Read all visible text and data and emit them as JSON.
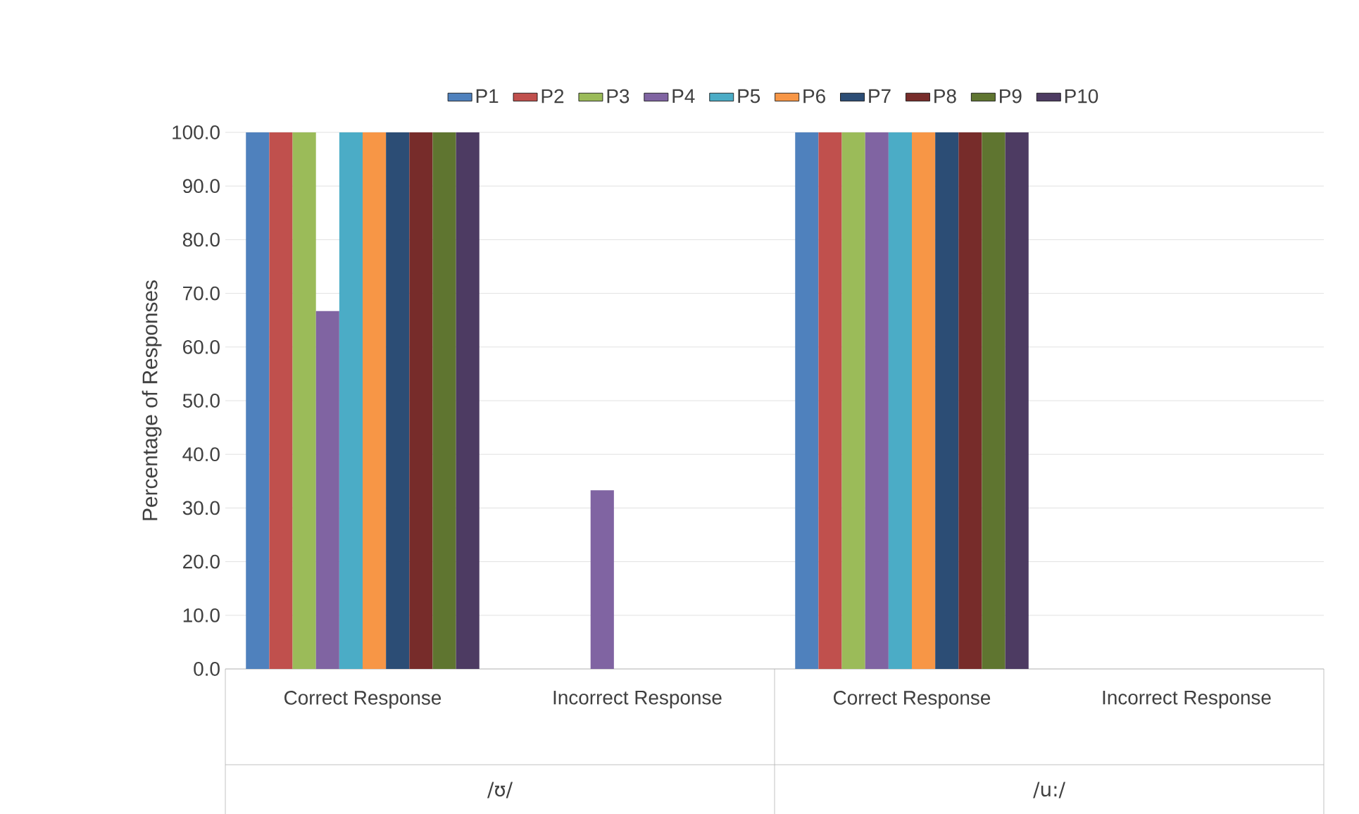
{
  "chart_data": {
    "type": "bar",
    "ylabel": "Percentage of Responses",
    "categories": [
      "Correct Response",
      "Incorrect Response",
      "Correct Response",
      "Incorrect Response"
    ],
    "annotations": [
      "/ʊ/",
      "/u:/"
    ],
    "series": [
      {
        "name": "P1",
        "color": "#4f81bd",
        "values": [
          100,
          0,
          100,
          0
        ]
      },
      {
        "name": "P2",
        "color": "#c0504d",
        "values": [
          100,
          0,
          100,
          0
        ]
      },
      {
        "name": "P3",
        "color": "#9bbb59",
        "values": [
          100,
          0,
          100,
          0
        ]
      },
      {
        "name": "P4",
        "color": "#8064a2",
        "values": [
          66.7,
          33.3,
          100,
          0
        ]
      },
      {
        "name": "P5",
        "color": "#4bacc6",
        "values": [
          100,
          0,
          100,
          0
        ]
      },
      {
        "name": "P6",
        "color": "#f79646",
        "values": [
          100,
          0,
          100,
          0
        ]
      },
      {
        "name": "P7",
        "color": "#2c4d75",
        "values": [
          100,
          0,
          100,
          0
        ]
      },
      {
        "name": "P8",
        "color": "#772c2a",
        "values": [
          100,
          0,
          100,
          0
        ]
      },
      {
        "name": "P9",
        "color": "#5f7530",
        "values": [
          100,
          0,
          100,
          0
        ]
      },
      {
        "name": "P10",
        "color": "#4d3b62",
        "values": [
          100,
          0,
          100,
          0
        ]
      }
    ],
    "ylim": [
      0,
      100
    ],
    "yticks": [
      {
        "value": 0,
        "label": "0.0"
      },
      {
        "value": 10,
        "label": "10.0"
      },
      {
        "value": 20,
        "label": "20.0"
      },
      {
        "value": 30,
        "label": "30.0"
      },
      {
        "value": 40,
        "label": "40.0"
      },
      {
        "value": 50,
        "label": "50.0"
      },
      {
        "value": 60,
        "label": "60.0"
      },
      {
        "value": 70,
        "label": "70.0"
      },
      {
        "value": 80,
        "label": "80.0"
      },
      {
        "value": 90,
        "label": "90.0"
      },
      {
        "value": 100,
        "label": "100.0"
      }
    ],
    "grid": "y",
    "legend": "top"
  }
}
